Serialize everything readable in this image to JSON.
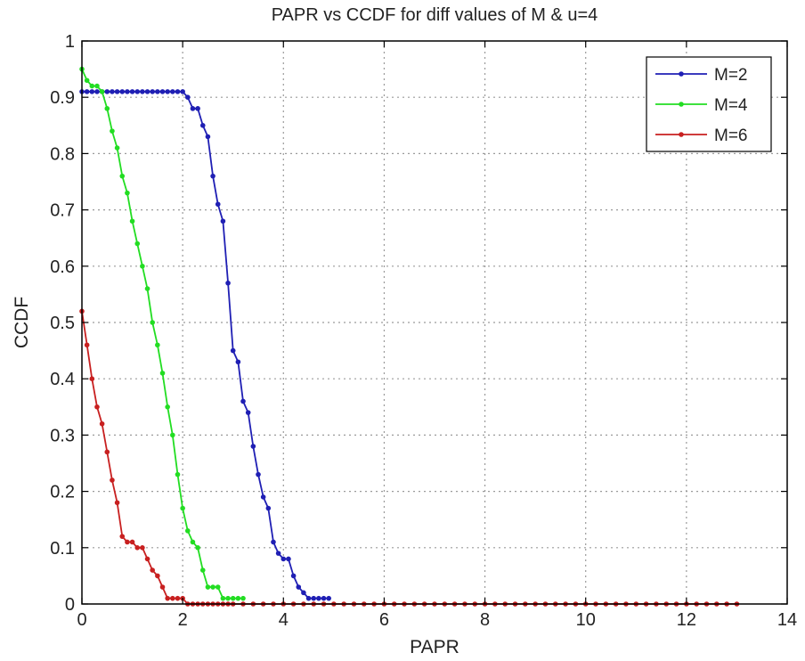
{
  "chart_data": {
    "type": "line",
    "title": "PAPR vs CCDF for diff values of M & u=4",
    "xlabel": "PAPR",
    "ylabel": "CCDF",
    "xlim": [
      0,
      14
    ],
    "ylim": [
      0,
      1
    ],
    "xticks": [
      0,
      2,
      4,
      6,
      8,
      10,
      12,
      14
    ],
    "yticks": [
      0,
      0.1,
      0.2,
      0.3,
      0.4,
      0.5,
      0.6,
      0.7,
      0.8,
      0.9,
      1
    ],
    "xtick_labels": [
      "0",
      "2",
      "4",
      "6",
      "8",
      "10",
      "12",
      "14"
    ],
    "ytick_labels": [
      "0",
      "0.1",
      "0.2",
      "0.3",
      "0.4",
      "0.5",
      "0.6",
      "0.7",
      "0.8",
      "0.9",
      "1"
    ],
    "grid": true,
    "legend_position": "top-right",
    "series": [
      {
        "name": "M=2",
        "color": "#1f1fb4",
        "x": [
          0,
          0.1,
          0.2,
          0.3,
          0.4,
          0.5,
          0.6,
          0.7,
          0.8,
          0.9,
          1.0,
          1.1,
          1.2,
          1.3,
          1.4,
          1.5,
          1.6,
          1.7,
          1.8,
          1.9,
          2.0,
          2.1,
          2.2,
          2.3,
          2.4,
          2.5,
          2.6,
          2.7,
          2.8,
          2.9,
          3.0,
          3.1,
          3.2,
          3.3,
          3.4,
          3.5,
          3.6,
          3.7,
          3.8,
          3.9,
          4.0,
          4.1,
          4.2,
          4.3,
          4.4,
          4.5,
          4.6,
          4.7,
          4.8,
          4.9
        ],
        "y": [
          0.91,
          0.91,
          0.91,
          0.91,
          0.91,
          0.91,
          0.91,
          0.91,
          0.91,
          0.91,
          0.91,
          0.91,
          0.91,
          0.91,
          0.91,
          0.91,
          0.91,
          0.91,
          0.91,
          0.91,
          0.91,
          0.9,
          0.88,
          0.88,
          0.85,
          0.83,
          0.76,
          0.71,
          0.68,
          0.57,
          0.45,
          0.43,
          0.36,
          0.34,
          0.28,
          0.23,
          0.19,
          0.17,
          0.11,
          0.09,
          0.08,
          0.08,
          0.05,
          0.03,
          0.02,
          0.01,
          0.01,
          0.01,
          0.01,
          0.01
        ]
      },
      {
        "name": "M=4",
        "color": "#22dd22",
        "x": [
          0,
          0.1,
          0.2,
          0.3,
          0.4,
          0.5,
          0.6,
          0.7,
          0.8,
          0.9,
          1.0,
          1.1,
          1.2,
          1.3,
          1.4,
          1.5,
          1.6,
          1.7,
          1.8,
          1.9,
          2.0,
          2.1,
          2.2,
          2.3,
          2.4,
          2.5,
          2.6,
          2.7,
          2.8,
          2.9,
          3.0,
          3.1,
          3.2
        ],
        "y": [
          0.95,
          0.93,
          0.92,
          0.92,
          0.91,
          0.88,
          0.84,
          0.81,
          0.76,
          0.73,
          0.68,
          0.64,
          0.6,
          0.56,
          0.5,
          0.46,
          0.41,
          0.35,
          0.3,
          0.23,
          0.17,
          0.13,
          0.11,
          0.1,
          0.06,
          0.03,
          0.03,
          0.03,
          0.01,
          0.01,
          0.01,
          0.01,
          0.01
        ]
      },
      {
        "name": "M=6",
        "color": "#c82020",
        "x": [
          0,
          0.1,
          0.2,
          0.3,
          0.4,
          0.5,
          0.6,
          0.7,
          0.8,
          0.9,
          1.0,
          1.1,
          1.2,
          1.3,
          1.4,
          1.5,
          1.6,
          1.7,
          1.8,
          1.9,
          2.0,
          2.1,
          2.2,
          2.3,
          2.4,
          2.5,
          2.6,
          2.7,
          2.8,
          2.9,
          3.0,
          3.2,
          3.4,
          3.6,
          3.8,
          4.0,
          4.2,
          4.4,
          4.6,
          4.8,
          5.0,
          5.2,
          5.4,
          5.6,
          5.8,
          6.0,
          6.2,
          6.4,
          6.6,
          6.8,
          7.0,
          7.2,
          7.4,
          7.6,
          7.8,
          8.0,
          8.2,
          8.4,
          8.6,
          8.8,
          9.0,
          9.2,
          9.4,
          9.6,
          9.8,
          10.0,
          10.2,
          10.4,
          10.6,
          10.8,
          11.0,
          11.2,
          11.4,
          11.6,
          11.8,
          12.0,
          12.2,
          12.4,
          12.6,
          12.8,
          13.0
        ],
        "y": [
          0.52,
          0.46,
          0.4,
          0.35,
          0.32,
          0.27,
          0.22,
          0.18,
          0.12,
          0.11,
          0.11,
          0.1,
          0.1,
          0.08,
          0.06,
          0.05,
          0.03,
          0.01,
          0.01,
          0.01,
          0.01,
          0,
          0,
          0,
          0,
          0,
          0,
          0,
          0,
          0,
          0,
          0,
          0,
          0,
          0,
          0,
          0,
          0,
          0,
          0,
          0,
          0,
          0,
          0,
          0,
          0,
          0,
          0,
          0,
          0,
          0,
          0,
          0,
          0,
          0,
          0,
          0,
          0,
          0,
          0,
          0,
          0,
          0,
          0,
          0,
          0,
          0,
          0,
          0,
          0,
          0,
          0,
          0,
          0,
          0,
          0,
          0,
          0,
          0,
          0,
          0
        ]
      }
    ]
  }
}
